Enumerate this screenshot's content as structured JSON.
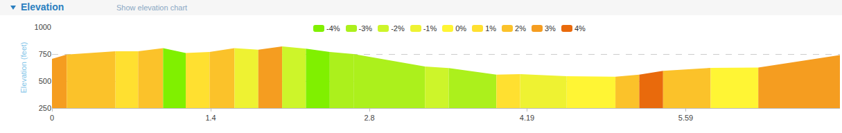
{
  "header": {
    "title": "Elevation",
    "link": "Show elevation chart"
  },
  "chart_data": {
    "type": "area",
    "y_label": "Elevation (feet)",
    "x": [
      0,
      0.13,
      0.56,
      0.76,
      0.98,
      1.18,
      1.39,
      1.61,
      1.82,
      2.03,
      2.24,
      2.45,
      2.66,
      3.29,
      3.5,
      3.92,
      4.13,
      4.54,
      4.97,
      5.18,
      5.39,
      5.81,
      6.23,
      6.95
    ],
    "values": [
      705,
      745,
      775,
      775,
      805,
      760,
      770,
      805,
      790,
      820,
      800,
      770,
      750,
      635,
      620,
      560,
      564,
      545,
      540,
      560,
      595,
      622,
      625,
      740
    ],
    "colors": [
      "#f59d20",
      "#fbc22a",
      "#ffe030",
      "#fbc22a",
      "#80f000",
      "#ffe030",
      "#fbc22a",
      "#eef232",
      "#f59d20",
      "#cdf52a",
      "#80f000",
      "#acf01c",
      "#acf01c",
      "#cdf52a",
      "#acf01c",
      "#ffe030",
      "#eef232",
      "#fff534",
      "#fbc22a",
      "#e96a0c",
      "#fbc22a",
      "#fff534",
      "#f59d20"
    ],
    "series": [
      {
        "name": "-4%",
        "color": "#80f000"
      },
      {
        "name": "-3%",
        "color": "#acf01c"
      },
      {
        "name": "-2%",
        "color": "#cdf52a"
      },
      {
        "name": "-1%",
        "color": "#eef232"
      },
      {
        "name": "0%",
        "color": "#fff534"
      },
      {
        "name": "1%",
        "color": "#ffe030"
      },
      {
        "name": "2%",
        "color": "#fbc22a"
      },
      {
        "name": "3%",
        "color": "#f59d20"
      },
      {
        "name": "4%",
        "color": "#e96a0c"
      }
    ],
    "xlim": [
      0,
      6.95
    ],
    "xticks": [
      0,
      1.4,
      2.8,
      4.19,
      5.59
    ],
    "ylim": [
      250,
      1000
    ],
    "yticks": [
      250,
      500,
      750,
      1000
    ],
    "grid": true
  }
}
